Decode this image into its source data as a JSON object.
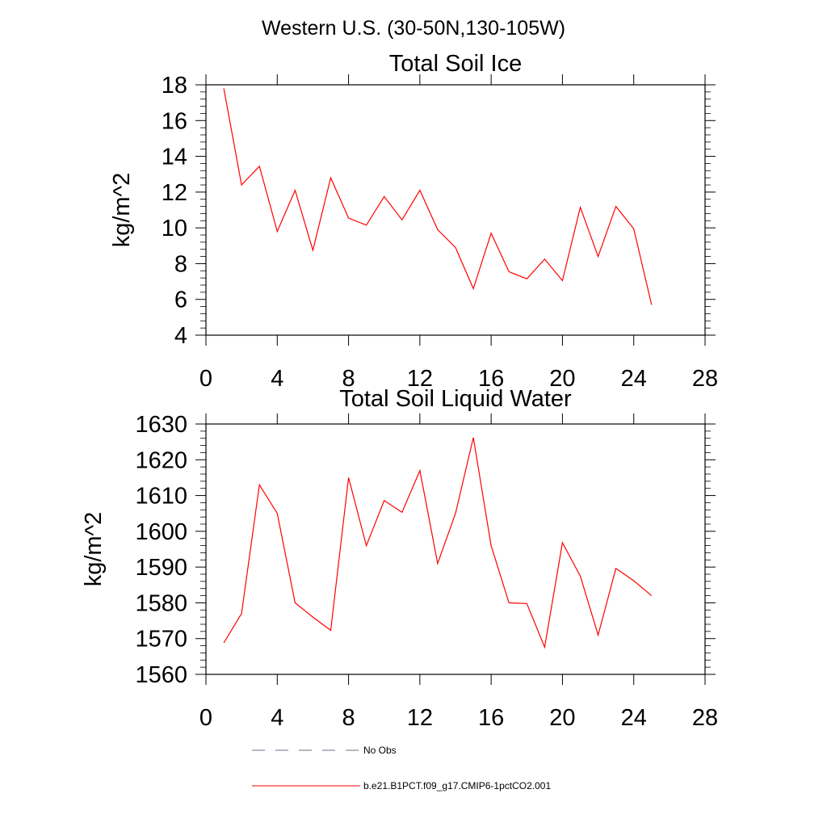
{
  "figure": {
    "main_title": "Western U.S. (30-50N,130-105W)"
  },
  "chart_data": [
    {
      "type": "line",
      "title": "Total Soil Ice",
      "xlabel": "",
      "ylabel": "kg/m^2",
      "xlim": [
        0,
        28
      ],
      "ylim": [
        4,
        18
      ],
      "x_ticks": [
        0,
        4,
        8,
        12,
        16,
        20,
        24,
        28
      ],
      "y_ticks": [
        4,
        6,
        8,
        10,
        12,
        14,
        16,
        18
      ],
      "grid": false,
      "series": [
        {
          "name": "b.e21.B1PCT.f09_g17.CMIP6-1pctCO2.001",
          "color": "#ff0000",
          "x": [
            1,
            2,
            3,
            4,
            5,
            6,
            7,
            8,
            9,
            10,
            11,
            12,
            13,
            14,
            15,
            16,
            17,
            18,
            19,
            20,
            21,
            22,
            23,
            24,
            25
          ],
          "values": [
            17.8,
            12.4,
            13.45,
            9.8,
            12.1,
            8.75,
            12.8,
            10.55,
            10.15,
            11.75,
            10.45,
            12.1,
            9.9,
            8.9,
            6.6,
            9.7,
            7.55,
            7.15,
            8.25,
            7.05,
            11.15,
            8.4,
            11.2,
            9.95,
            5.7
          ]
        }
      ]
    },
    {
      "type": "line",
      "title": "Total Soil Liquid Water",
      "xlabel": "",
      "ylabel": "kg/m^2",
      "xlim": [
        0,
        28
      ],
      "ylim": [
        1560,
        1630
      ],
      "x_ticks": [
        0,
        4,
        8,
        12,
        16,
        20,
        24,
        28
      ],
      "y_ticks": [
        1560,
        1570,
        1580,
        1590,
        1600,
        1610,
        1620,
        1630
      ],
      "grid": false,
      "series": [
        {
          "name": "b.e21.B1PCT.f09_g17.CMIP6-1pctCO2.001",
          "color": "#ff0000",
          "x": [
            1,
            2,
            3,
            4,
            5,
            6,
            7,
            8,
            9,
            10,
            11,
            12,
            13,
            14,
            15,
            16,
            17,
            18,
            19,
            20,
            21,
            22,
            23,
            24,
            25
          ],
          "values": [
            1568.8,
            1577,
            1613,
            1605,
            1580,
            1576,
            1572.3,
            1615,
            1596,
            1608.6,
            1605.3,
            1617,
            1591,
            1605,
            1626.2,
            1596,
            1580,
            1579.8,
            1567.6,
            1596.8,
            1587.5,
            1571,
            1589.6,
            1586.2,
            1582
          ]
        }
      ]
    }
  ],
  "legend": {
    "placement": "bottom",
    "items": [
      {
        "label": "No Obs",
        "style": "dashed",
        "color": "#6a6f8c"
      },
      {
        "label": "b.e21.B1PCT.f09_g17.CMIP6-1pctCO2.001",
        "style": "solid",
        "color": "#ff0000"
      }
    ]
  }
}
